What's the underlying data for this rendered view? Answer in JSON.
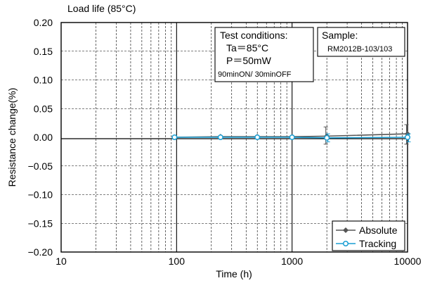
{
  "chart_data": {
    "type": "line",
    "title": "Load life (85°C)",
    "xlabel": "Time (h)",
    "ylabel": "Resistance change(%)",
    "xscale": "log",
    "xlim": [
      10,
      10000
    ],
    "ylim": [
      -0.2,
      0.2
    ],
    "grid": true,
    "legend_position": "bottom-right",
    "x_ticks": [
      "10",
      "100",
      "1000",
      "10000"
    ],
    "y_ticks": [
      "0.20",
      "0.15",
      "0.10",
      "0.05",
      "0.00",
      "−0.05",
      "−0.10",
      "−0.15",
      "−0.20"
    ],
    "series": [
      {
        "name": "Absolute",
        "color": "#555555",
        "marker": "diamond",
        "x": [
          96,
          240,
          500,
          1000,
          2000,
          10000
        ],
        "y": [
          0.0,
          0.001,
          0.001,
          0.001,
          0.002,
          0.006
        ],
        "err_upper": [
          0.0,
          0.0,
          0.0,
          0.0,
          0.018,
          0.022
        ],
        "err_lower": [
          0.0,
          0.0,
          0.0,
          0.0,
          -0.012,
          -0.012
        ]
      },
      {
        "name": "Tracking",
        "color": "#1a9ed3",
        "marker": "circle",
        "x": [
          96,
          240,
          500,
          1000,
          2000,
          10000
        ],
        "y": [
          0.0,
          0.0,
          0.0,
          0.0,
          -0.001,
          0.0
        ],
        "err_upper": [
          0.0,
          0.0,
          0.0,
          0.0,
          0.006,
          0.006
        ],
        "err_lower": [
          0.0,
          0.0,
          0.0,
          0.0,
          -0.008,
          -0.008
        ]
      }
    ]
  },
  "annotations": {
    "test_conditions": {
      "title": "Test conditions:",
      "line1": "Ta＝85°C",
      "line2": "P＝50mW",
      "line3": "90minON/ 30minOFF"
    },
    "sample": {
      "title": "Sample:",
      "value": "RM2012B-103/103"
    }
  }
}
